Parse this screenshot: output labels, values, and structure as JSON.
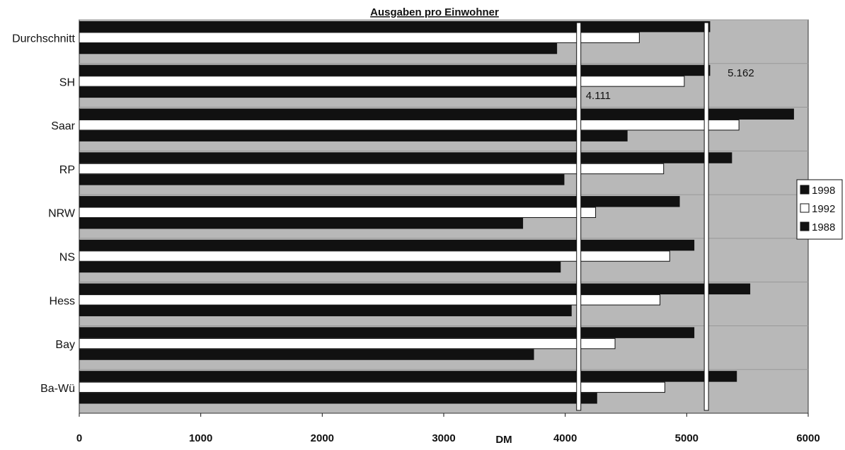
{
  "chart_data": {
    "type": "bar",
    "orientation": "horizontal",
    "title": "Ausgaben pro Einwohner",
    "xlabel": "DM",
    "ylabel": "",
    "categories": [
      "Durchschnitt",
      "SH",
      "Saar",
      "RP",
      "NRW",
      "NS",
      "Hess",
      "Bay",
      "Ba-Wü"
    ],
    "series": [
      {
        "name": "1998",
        "color": "#111111",
        "values": [
          5190,
          5190,
          5880,
          5370,
          4940,
          5060,
          5520,
          5060,
          5410
        ]
      },
      {
        "name": "1992",
        "color": "#ffffff",
        "values": [
          4610,
          4980,
          5430,
          4810,
          4250,
          4860,
          4780,
          4410,
          4820
        ]
      },
      {
        "name": "1988",
        "color": "#111111",
        "values": [
          3930,
          4111,
          4510,
          3990,
          3650,
          3960,
          4050,
          3740,
          4260
        ]
      }
    ],
    "xlim": [
      0,
      6000
    ],
    "xticks": [
      "0",
      "1000",
      "2000",
      "3000",
      "4000",
      "5000",
      "6000"
    ],
    "reference_lines": [
      {
        "value": 4111,
        "label": "4.111"
      },
      {
        "value": 5162,
        "label": "5.162"
      }
    ],
    "legend_position": "right",
    "background": "#b8b8b8"
  }
}
